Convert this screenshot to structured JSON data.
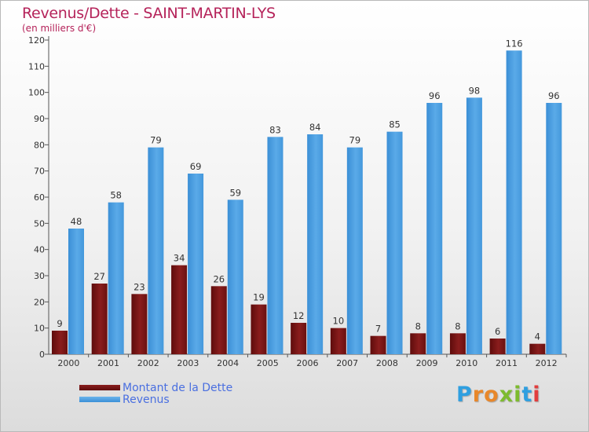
{
  "title": "Revenus/Dette - SAINT-MARTIN-LYS",
  "subtitle": "(en milliers d'€)",
  "logo": {
    "text": "Proxiti",
    "letter_colors": [
      "#2f9fe0",
      "#e8872a",
      "#e8872a",
      "#7dbb2e",
      "#7dbb2e",
      "#2f9fe0",
      "#e23d3d"
    ]
  },
  "chart_data": {
    "type": "bar",
    "title": "Revenus/Dette - SAINT-MARTIN-LYS",
    "ylabel": "(en milliers d'€)",
    "categories": [
      "2000",
      "2001",
      "2002",
      "2003",
      "2004",
      "2005",
      "2006",
      "2007",
      "2008",
      "2009",
      "2010",
      "2011",
      "2012"
    ],
    "ylim": [
      0,
      120
    ],
    "yticks": [
      0,
      10,
      20,
      30,
      40,
      50,
      60,
      70,
      80,
      90,
      100,
      110,
      120
    ],
    "grid": false,
    "series": [
      {
        "name": "Montant de la Dette",
        "color": "#7a1616",
        "values": [
          9,
          27,
          23,
          34,
          26,
          19,
          12,
          10,
          7,
          8,
          8,
          6,
          4
        ]
      },
      {
        "name": "Revenus",
        "color": "#4f9fe0",
        "values": [
          48,
          58,
          79,
          69,
          59,
          83,
          84,
          79,
          85,
          96,
          98,
          116,
          96
        ]
      }
    ]
  }
}
